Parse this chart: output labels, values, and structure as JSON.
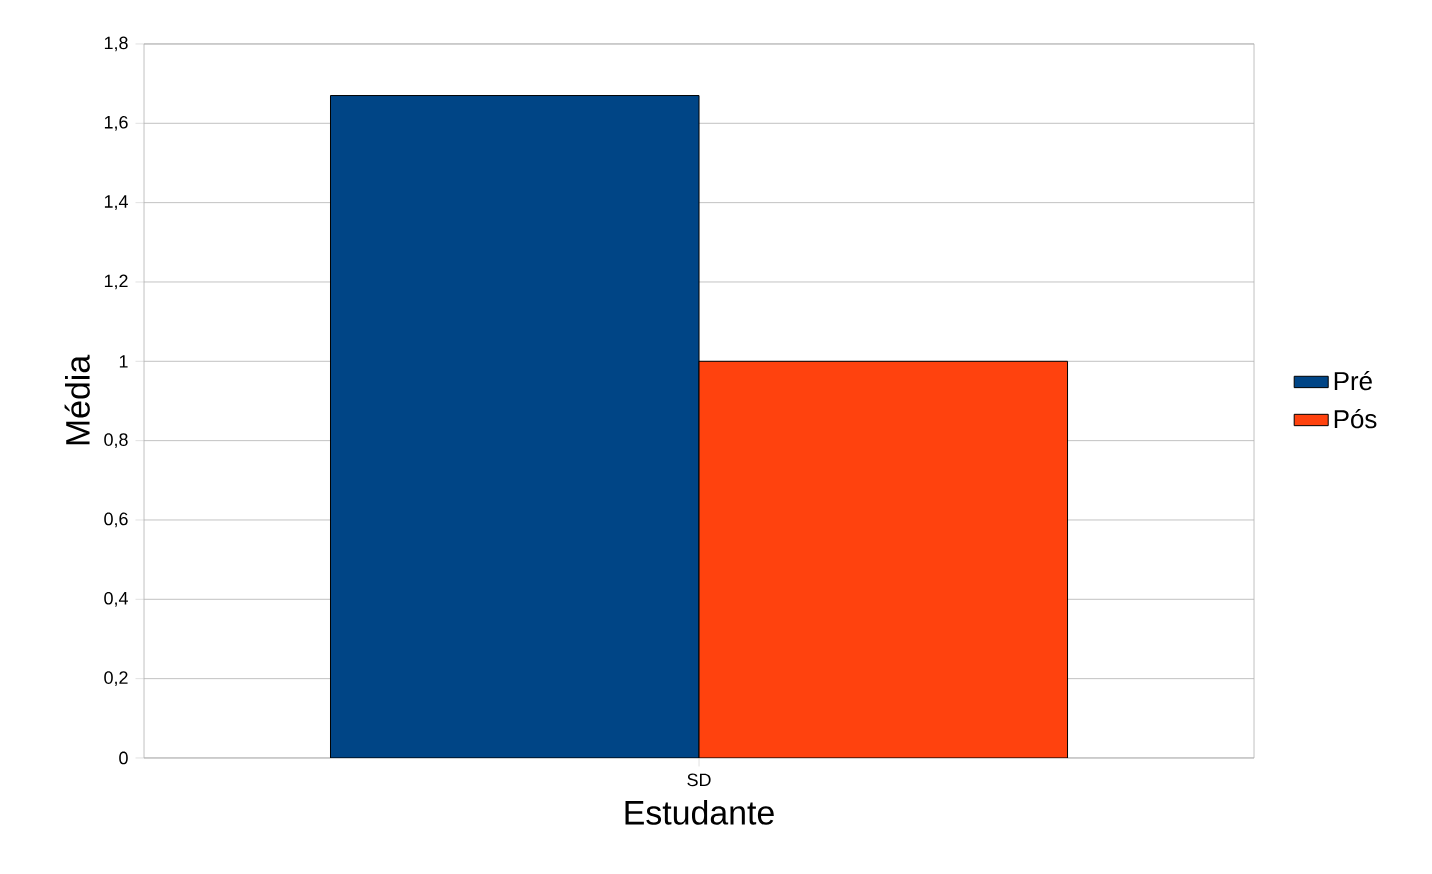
{
  "chart_data": {
    "type": "bar",
    "xlabel": "Estudante",
    "ylabel": "Média",
    "categories": [
      "SD"
    ],
    "series": [
      {
        "name": "Pré",
        "color": "#004586",
        "values": [
          1.67
        ]
      },
      {
        "name": "Pós",
        "color": "#ff420e",
        "values": [
          1
        ]
      }
    ],
    "ylim": [
      0,
      1.8
    ],
    "yticks": [
      0,
      {
        "value": 0.2,
        "label": "0,2"
      },
      {
        "value": 0.4,
        "label": "0,4"
      },
      {
        "value": 0.6,
        "label": "0,6"
      },
      {
        "value": 0.8,
        "label": "0,8"
      },
      1,
      {
        "value": 1.2,
        "label": "1,2"
      },
      {
        "value": 1.4,
        "label": "1,4"
      },
      {
        "value": 1.6,
        "label": "1,6"
      },
      {
        "value": 1.8,
        "label": "1,8"
      }
    ],
    "grid": "y",
    "legend": "right"
  }
}
